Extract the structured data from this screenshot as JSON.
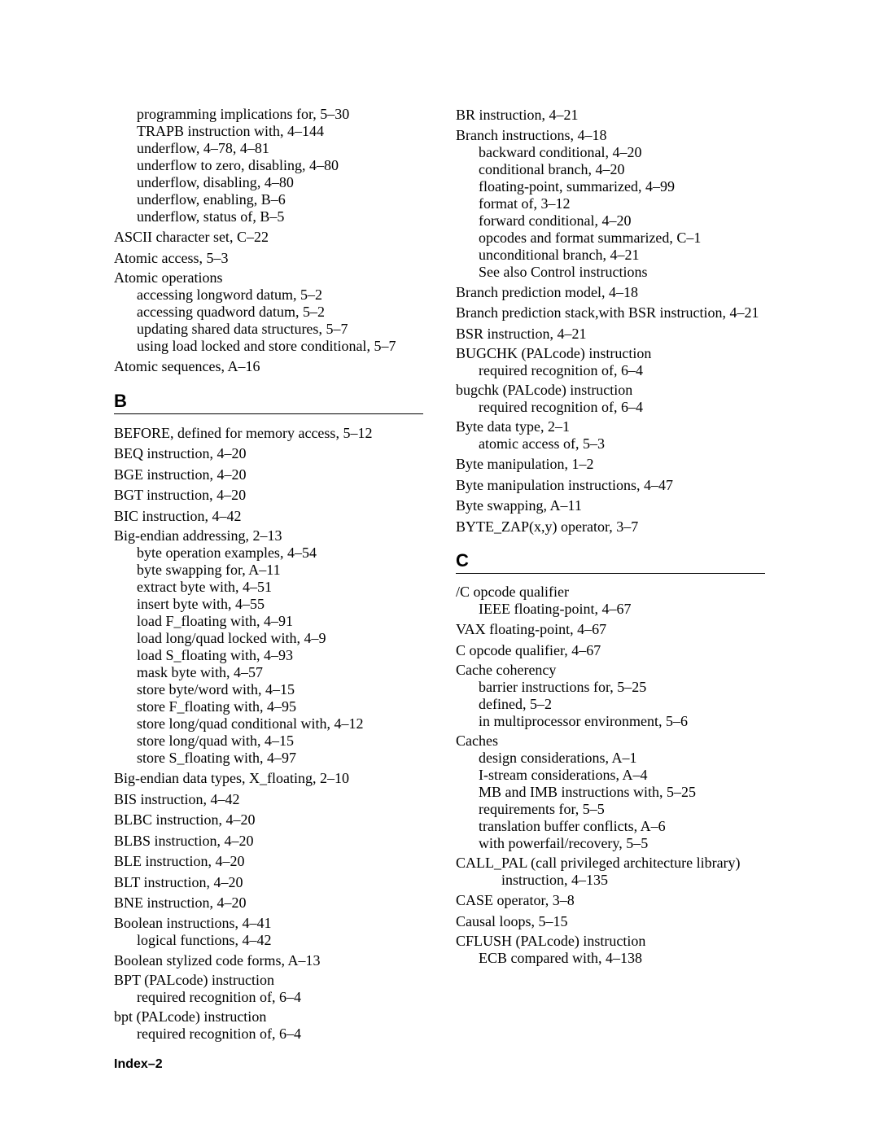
{
  "footer": "Index–2",
  "sections": {
    "B": "B",
    "C": "C"
  },
  "left": [
    {
      "type": "group",
      "main": null,
      "subs": [
        {
          "text": "programming implications for",
          "sep": ",  ",
          "ref": "5–30"
        },
        {
          "text": "TRAPB instruction with",
          "sep": ",  ",
          "ref": "4–144"
        },
        {
          "text": "underflow",
          "sep": ",  ",
          "ref": "4–78, 4–81"
        },
        {
          "text": "underflow to zero, disabling",
          "sep": ",  ",
          "ref": "4–80"
        },
        {
          "text": "underflow, disabling",
          "sep": ",  ",
          "ref": "4–80"
        },
        {
          "text": "underflow, enabling",
          "sep": ",  ",
          "ref": "B–6"
        },
        {
          "text": "underflow, status of",
          "sep": ",  ",
          "ref": "B–5"
        }
      ]
    },
    {
      "type": "entry",
      "text": "ASCII character set",
      "sep": ",  ",
      "ref": "C–22"
    },
    {
      "type": "entry",
      "text": "Atomic access",
      "sep": ",  ",
      "ref": "5–3"
    },
    {
      "type": "group",
      "main": {
        "text": "Atomic operations",
        "sep": "",
        "ref": ""
      },
      "subs": [
        {
          "text": "accessing longword datum",
          "sep": ",  ",
          "ref": "5–2"
        },
        {
          "text": "accessing quadword datum",
          "sep": ",  ",
          "ref": "5–2"
        },
        {
          "text": "updating shared data structures",
          "sep": ",  ",
          "ref": "5–7"
        },
        {
          "text": "using load locked and store conditional",
          "sep": ",  ",
          "ref": "5–7"
        }
      ]
    },
    {
      "type": "entry",
      "text": "Atomic sequences",
      "sep": ",  ",
      "ref": "A–16"
    },
    {
      "type": "section",
      "key": "B"
    },
    {
      "type": "entry",
      "text": "BEFORE, defined for memory access",
      "sep": ",  ",
      "ref": "5–12"
    },
    {
      "type": "entry",
      "text": "BEQ instruction",
      "sep": ",  ",
      "ref": "4–20"
    },
    {
      "type": "entry",
      "text": "BGE instruction",
      "sep": ",  ",
      "ref": "4–20"
    },
    {
      "type": "entry",
      "text": "BGT instruction",
      "sep": ",  ",
      "ref": "4–20"
    },
    {
      "type": "entry",
      "text": "BIC instruction",
      "sep": ",  ",
      "ref": "4–42"
    },
    {
      "type": "group",
      "main": {
        "text": "Big-endian addressing",
        "sep": ",  ",
        "ref": "2–13"
      },
      "subs": [
        {
          "text": "byte operation examples",
          "sep": ",  ",
          "ref": "4–54"
        },
        {
          "text": "byte swapping for",
          "sep": ",  ",
          "ref": "A–11"
        },
        {
          "text": "extract byte with",
          "sep": ",  ",
          "ref": "4–51"
        },
        {
          "text": "insert byte with",
          "sep": ",  ",
          "ref": "4–55"
        },
        {
          "text": "load F_floating with",
          "sep": ",  ",
          "ref": "4–91"
        },
        {
          "text": "load long/quad locked with",
          "sep": ",  ",
          "ref": "4–9"
        },
        {
          "text": "load S_floating with",
          "sep": ",  ",
          "ref": "4–93"
        },
        {
          "text": "mask byte with",
          "sep": ",  ",
          "ref": "4–57"
        },
        {
          "text": "store byte/word with",
          "sep": ",  ",
          "ref": "4–15"
        },
        {
          "text": "store F_floating with",
          "sep": ",  ",
          "ref": "4–95"
        },
        {
          "text": "store long/quad conditional with",
          "sep": ",  ",
          "ref": "4–12"
        },
        {
          "text": "store long/quad with",
          "sep": ",  ",
          "ref": "4–15"
        },
        {
          "text": "store S_floating with",
          "sep": ",  ",
          "ref": "4–97"
        }
      ]
    },
    {
      "type": "entry",
      "text": "Big-endian data types, X_floating",
      "sep": ",  ",
      "ref": "2–10"
    },
    {
      "type": "entry",
      "text": "BIS instruction",
      "sep": ",  ",
      "ref": "4–42"
    },
    {
      "type": "entry",
      "text": "BLBC instruction",
      "sep": ",  ",
      "ref": "4–20"
    },
    {
      "type": "entry",
      "text": "BLBS instruction",
      "sep": ",  ",
      "ref": "4–20"
    },
    {
      "type": "entry",
      "text": "BLE instruction",
      "sep": ",  ",
      "ref": "4–20"
    },
    {
      "type": "entry",
      "text": "BLT instruction",
      "sep": ",  ",
      "ref": "4–20"
    },
    {
      "type": "entry",
      "text": "BNE instruction",
      "sep": ",  ",
      "ref": "4–20"
    },
    {
      "type": "group",
      "main": {
        "text": "Boolean instructions",
        "sep": ",  ",
        "ref": "4–41"
      },
      "subs": [
        {
          "text": "logical functions",
          "sep": ",  ",
          "ref": "4–42"
        }
      ]
    },
    {
      "type": "entry",
      "text": "Boolean stylized code forms",
      "sep": ",  ",
      "ref": "A–13"
    },
    {
      "type": "group",
      "main": {
        "text": "BPT (PALcode) instruction",
        "sep": "",
        "ref": ""
      },
      "subs": [
        {
          "text": "required recognition of",
          "sep": ",  ",
          "ref": "6–4"
        }
      ]
    },
    {
      "type": "group",
      "main": {
        "text": "bpt (PALcode) instruction",
        "sep": "",
        "ref": ""
      },
      "subs": [
        {
          "text": "required recognition of",
          "sep": ",  ",
          "ref": "6–4"
        }
      ]
    }
  ],
  "right": [
    {
      "type": "entry",
      "text": "BR instruction",
      "sep": ",  ",
      "ref": "4–21"
    },
    {
      "type": "group",
      "main": {
        "text": "Branch instructions",
        "sep": ",  ",
        "ref": "4–18"
      },
      "subs": [
        {
          "text": "backward conditional",
          "sep": ",  ",
          "ref": "4–20"
        },
        {
          "text": "conditional branch",
          "sep": ",  ",
          "ref": "4–20"
        },
        {
          "text": "floating-point, summarized",
          "sep": ",  ",
          "ref": "4–99"
        },
        {
          "text": "format of",
          "sep": ",  ",
          "ref": "3–12"
        },
        {
          "text": "forward conditional",
          "sep": ",  ",
          "ref": "4–20"
        },
        {
          "text": "opcodes and format summarized",
          "sep": ",  ",
          "ref": "C–1"
        },
        {
          "text": "unconditional branch",
          "sep": ",  ",
          "ref": "4–21"
        },
        {
          "text": "See also Control instructions",
          "sep": "",
          "ref": ""
        }
      ]
    },
    {
      "type": "entry",
      "text": "Branch prediction model",
      "sep": ",  ",
      "ref": "4–18"
    },
    {
      "type": "entry",
      "text": "Branch prediction stack,with BSR instruction",
      "sep": ",  ",
      "ref": "4–21"
    },
    {
      "type": "entry",
      "text": "BSR instruction",
      "sep": ",  ",
      "ref": "4–21"
    },
    {
      "type": "group",
      "main": {
        "text": "BUGCHK (PALcode) instruction",
        "sep": "",
        "ref": ""
      },
      "subs": [
        {
          "text": "required recognition of",
          "sep": ",  ",
          "ref": "6–4"
        }
      ]
    },
    {
      "type": "group",
      "main": {
        "text": "bugchk (PALcode) instruction",
        "sep": "",
        "ref": ""
      },
      "subs": [
        {
          "text": "required recognition of",
          "sep": ",  ",
          "ref": "6–4"
        }
      ]
    },
    {
      "type": "group",
      "main": {
        "text": "Byte data type",
        "sep": ",  ",
        "ref": "2–1"
      },
      "subs": [
        {
          "text": "atomic access of",
          "sep": ",  ",
          "ref": "5–3"
        }
      ]
    },
    {
      "type": "entry",
      "text": "Byte manipulation",
      "sep": ",  ",
      "ref": "1–2"
    },
    {
      "type": "entry",
      "text": "Byte manipulation instructions",
      "sep": ",  ",
      "ref": "4–47"
    },
    {
      "type": "entry",
      "text": "Byte swapping",
      "sep": ",  ",
      "ref": "A–11"
    },
    {
      "type": "entry",
      "text": "BYTE_ZAP(x,y) operator",
      "sep": ",  ",
      "ref": "3–7"
    },
    {
      "type": "section",
      "key": "C"
    },
    {
      "type": "group",
      "main": {
        "text": "/C opcode qualifier",
        "sep": "",
        "ref": ""
      },
      "subs": [
        {
          "text": "IEEE floating-point",
          "sep": ",  ",
          "ref": "4–67"
        }
      ]
    },
    {
      "type": "entry",
      "text": "VAX floating-point",
      "sep": ",  ",
      "ref": "4–67"
    },
    {
      "type": "entry",
      "text": "C opcode qualifier",
      "sep": ",  ",
      "ref": "4–67"
    },
    {
      "type": "group",
      "main": {
        "text": "Cache coherency",
        "sep": "",
        "ref": ""
      },
      "subs": [
        {
          "text": "barrier instructions for",
          "sep": ",  ",
          "ref": "5–25"
        },
        {
          "text": "defined",
          "sep": ",  ",
          "ref": "5–2"
        },
        {
          "text": "in multiprocessor environment",
          "sep": ",  ",
          "ref": "5–6"
        }
      ]
    },
    {
      "type": "group",
      "main": {
        "text": "Caches",
        "sep": "",
        "ref": ""
      },
      "subs": [
        {
          "text": "design considerations",
          "sep": ",  ",
          "ref": "A–1"
        },
        {
          "text": "I-stream considerations",
          "sep": ",  ",
          "ref": "A–4"
        },
        {
          "text": "MB and IMB instructions with",
          "sep": ",  ",
          "ref": "5–25"
        },
        {
          "text": "requirements for",
          "sep": ",  ",
          "ref": "5–5"
        },
        {
          "text": "translation buffer conflicts",
          "sep": ",  ",
          "ref": "A–6"
        },
        {
          "text": "with powerfail/recovery",
          "sep": ",  ",
          "ref": "5–5"
        }
      ]
    },
    {
      "type": "group",
      "main": {
        "text": "CALL_PAL (call privileged architecture library)",
        "sep": "",
        "ref": ""
      },
      "subs": [
        {
          "text": "instruction",
          "sep": ",  ",
          "ref": "4–135"
        }
      ],
      "subIndent": 56
    },
    {
      "type": "entry",
      "text": "CASE operator",
      "sep": ",  ",
      "ref": "3–8"
    },
    {
      "type": "entry",
      "text": "Causal loops",
      "sep": ",  ",
      "ref": "5–15"
    },
    {
      "type": "group",
      "main": {
        "text": "CFLUSH (PALcode) instruction",
        "sep": "",
        "ref": ""
      },
      "subs": [
        {
          "text": "ECB compared with",
          "sep": ",  ",
          "ref": "4–138"
        }
      ]
    }
  ]
}
